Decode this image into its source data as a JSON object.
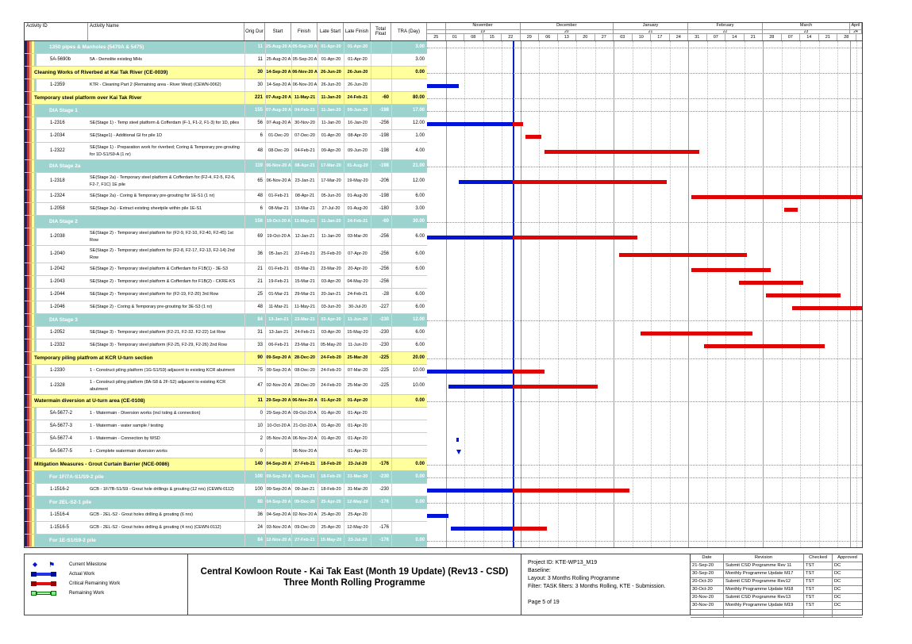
{
  "table": {
    "columns": [
      "Activity ID",
      "Activity Name",
      "Orig Dur",
      "Start",
      "Finish",
      "Late Start",
      "Late Finish",
      "Total Float",
      "TRA (Day)"
    ]
  },
  "chart_data": {
    "type": "gantt",
    "title": "Central Kowloon Route - Kai Tak East (Month 19 Update) (Rev13 - CSD) Three Month Rolling Programme",
    "bar_day_offsets_from": "25-Oct-20",
    "timeline": {
      "window_start_week": "25",
      "data_date_day_offset": 32,
      "months": [
        {
          "label": "",
          "period": "",
          "weeks": [
            "25"
          ]
        },
        {
          "label": "November",
          "period": "19",
          "weeks": [
            "01",
            "08",
            "15",
            "22"
          ]
        },
        {
          "label": "December",
          "period": "20",
          "weeks": [
            "29",
            "06",
            "13",
            "20",
            "27"
          ]
        },
        {
          "label": "January",
          "period": "21",
          "weeks": [
            "03",
            "10",
            "17",
            "24"
          ]
        },
        {
          "label": "February",
          "period": "22",
          "weeks": [
            "31",
            "07",
            "14",
            "21"
          ]
        },
        {
          "label": "March",
          "period": "23",
          "weeks": [
            "28",
            "07",
            "14",
            "21",
            "28"
          ]
        },
        {
          "label": "April",
          "period": "24",
          "weeks": []
        }
      ]
    },
    "colors": {
      "teal_band": "#9cd3cf",
      "yellow_band": "#ffff9c",
      "actual_bar": "#0014d8",
      "critical_remaining_bar": "#e00505",
      "remaining_bar": "#b6f2b6",
      "data_date_line": "#0020c8"
    },
    "rows": [
      {
        "type": "group2",
        "name": "1350 pipes & Manholes (5470A & 5475)",
        "dur": "11",
        "start": "25-Aug-20 A",
        "finish": "05-Sep-20 A",
        "late_start": "01-Apr-20",
        "late_finish": "01-Apr-20",
        "total_float": "",
        "tra": "3.00"
      },
      {
        "type": "activity",
        "id": "5A-5690b",
        "name": "5A - Demolite existing MHs",
        "dur": "11",
        "start": "25-Aug-20 A",
        "finish": "05-Sep-20 A",
        "late_start": "01-Apr-20",
        "late_finish": "01-Apr-20",
        "total_float": "",
        "tra": "3.00"
      },
      {
        "type": "group1",
        "name": "Cleaning Works of Riverbed at Kai Tak River (CE-0039)",
        "dur": "30",
        "start": "14-Sep-20 A",
        "finish": "06-Nov-20 A",
        "late_start": "26-Jun-20",
        "late_finish": "26-Jun-20",
        "total_float": "",
        "tra": "0.00"
      },
      {
        "type": "activity",
        "id": "1-2359",
        "name": "KTR - Cleaning Part 2 (Remaining area - River West) (CEWN-0062)",
        "dur": "30",
        "start": "14-Sep-20 A",
        "finish": "06-Nov-20 A",
        "late_start": "26-Jun-20",
        "late_finish": "26-Jun-20",
        "total_float": "",
        "tra": "",
        "bar": {
          "actual": [
            0,
            12
          ]
        }
      },
      {
        "type": "group1",
        "name": "Temporary steel platform over Kai Tak River",
        "dur": "221",
        "start": "07-Aug-20 A",
        "finish": "11-May-21",
        "late_start": "11-Jan-20",
        "late_finish": "24-Feb-21",
        "total_float": "-60",
        "tra": "80.00"
      },
      {
        "type": "group2",
        "name": "DIA Stage 1",
        "dur": "155",
        "start": "07-Aug-20 A",
        "finish": "04-Feb-21",
        "late_start": "11-Jan-20",
        "late_finish": "09-Jun-20",
        "total_float": "-198",
        "tra": "17.00"
      },
      {
        "type": "activity",
        "id": "1-2316",
        "name": "SE(Stage 1) - Temp steel platform & Cofferdam (F-1, F1-2, F1-3) for 1D, piles",
        "dur": "56",
        "start": "07-Aug-20 A",
        "finish": "30-Nov-20",
        "late_start": "11-Jan-20",
        "late_finish": "16-Jan-20",
        "total_float": "-256",
        "tra": "12.00",
        "bar": {
          "actual": [
            0,
            32
          ],
          "critical": [
            32,
            36
          ]
        }
      },
      {
        "type": "activity",
        "id": "1-2034",
        "name": "SE(Stage1) - Additional GI for pile 1D",
        "dur": "6",
        "start": "01-Dec-20",
        "finish": "07-Dec-20",
        "late_start": "01-Apr-20",
        "late_finish": "08-Apr-20",
        "total_float": "-198",
        "tra": "1.00",
        "bar": {
          "critical": [
            37,
            43
          ]
        }
      },
      {
        "type": "activity",
        "id": "1-2322",
        "lines": 2,
        "name": "SE(Stage 1) - Preparation work for riverbed; Coring & Temporary pre-grouting for 1D-S1/S9-A (1 nr)",
        "dur": "48",
        "start": "08-Dec-20",
        "finish": "04-Feb-21",
        "late_start": "09-Apr-20",
        "late_finish": "09-Jun-20",
        "total_float": "-198",
        "tra": "4.00",
        "bar": {
          "critical": [
            44,
            102
          ]
        }
      },
      {
        "type": "group2",
        "name": "DIA Stage 2a",
        "dur": "119",
        "start": "06-Nov-20 A",
        "finish": "08-Apr-21",
        "late_start": "17-Mar-20",
        "late_finish": "01-Aug-20",
        "total_float": "-198",
        "tra": "21.00"
      },
      {
        "type": "activity",
        "id": "1-2318",
        "lines": 2,
        "name": "SE(Stage 2a) - Temporary steel platform & Cofferdam for (F2-4, F2-5, F2-6, F2-7, F1C) 1E pile",
        "dur": "65",
        "start": "06-Nov-20 A",
        "finish": "23-Jan-21",
        "late_start": "17-Mar-20",
        "late_finish": "19-May-20",
        "total_float": "-206",
        "tra": "12.00",
        "bar": {
          "actual": [
            12,
            32
          ],
          "critical": [
            32,
            90
          ]
        }
      },
      {
        "type": "activity",
        "id": "1-2324",
        "name": "SE(Stage 2a) - Coring & Temporary pre-grouting for 1E-S1 (1 nr)",
        "dur": "48",
        "start": "01-Feb-21",
        "finish": "08-Apr-21",
        "late_start": "05-Jun-20",
        "late_finish": "01-Aug-20",
        "total_float": "-198",
        "tra": "6.00",
        "bar": {
          "critical": [
            99,
            163
          ]
        }
      },
      {
        "type": "activity",
        "id": "1-2058",
        "name": "SE(Stage 2a) - Extract existing sheetpile within pile 1E-S1",
        "dur": "6",
        "start": "08-Mar-21",
        "finish": "13-Mar-21",
        "late_start": "27-Jul-20",
        "late_finish": "01-Aug-20",
        "total_float": "-180",
        "tra": "3.00",
        "bar": {
          "critical": [
            134,
            139
          ]
        }
      },
      {
        "type": "group2",
        "name": "DIA Stage 2",
        "dur": "156",
        "start": "19-Oct-20 A",
        "finish": "11-May-21",
        "late_start": "11-Jan-20",
        "late_finish": "24-Feb-21",
        "total_float": "-60",
        "tra": "30.00"
      },
      {
        "type": "activity",
        "id": "1-2038",
        "lines": 2,
        "name": "SE(Stage 2) - Temporary steel platform for (F2-9, F2-10, F2-40, F2-45) 1st Row",
        "dur": "69",
        "start": "19-Oct-20 A",
        "finish": "12-Jan-21",
        "late_start": "11-Jan-20",
        "late_finish": "03-Mar-20",
        "total_float": "-256",
        "tra": "6.00",
        "bar": {
          "actual": [
            0,
            32
          ],
          "critical": [
            32,
            79
          ]
        }
      },
      {
        "type": "activity",
        "id": "1-2040",
        "lines": 2,
        "name": "SE(Stage 2) - Temporary steel platform for (F2-8, F2-17, F2-13, F2-14) 2nd Row",
        "dur": "36",
        "start": "05-Jan-21",
        "finish": "22-Feb-21",
        "late_start": "25-Feb-20",
        "late_finish": "07-Apr-20",
        "total_float": "-256",
        "tra": "6.00",
        "bar": {
          "critical": [
            72,
            120
          ]
        }
      },
      {
        "type": "activity",
        "id": "1-2042",
        "name": "SE(Stage 2) - Temporary steel platform & Cofferdam for F1B(1) - 3E-S3",
        "dur": "21",
        "start": "01-Feb-21",
        "finish": "03-Mar-21",
        "late_start": "23-Mar-20",
        "late_finish": "20-Apr-20",
        "total_float": "-256",
        "tra": "6.00",
        "bar": {
          "critical": [
            99,
            129
          ]
        }
      },
      {
        "type": "activity",
        "id": "1-2043",
        "name": "SE(Stage 2) - Temporary steel platform & Cofferdam for F1B(2) - CKRE-KS",
        "dur": "21",
        "start": "19-Feb-21",
        "finish": "15-Mar-21",
        "late_start": "03-Apr-20",
        "late_finish": "04-May-20",
        "total_float": "-256",
        "tra": "",
        "bar": {
          "critical": [
            117,
            141
          ]
        }
      },
      {
        "type": "activity",
        "id": "1-2044",
        "name": "SE(Stage 2) - Temporary steel platform for (F2-19, F2-20) 3rd Row",
        "dur": "25",
        "start": "01-Mar-21",
        "finish": "29-Mar-21",
        "late_start": "20-Jan-21",
        "late_finish": "24-Feb-21",
        "total_float": "-28",
        "tra": "6.00",
        "bar": {
          "critical": [
            127,
            155
          ]
        }
      },
      {
        "type": "activity",
        "id": "1-2046",
        "name": "SE(Stage 2) - Coring & Temporary pre-grouting for 3E-S3 (1 nr)",
        "dur": "48",
        "start": "11-Mar-21",
        "finish": "11-May-21",
        "late_start": "03-Jun-20",
        "late_finish": "30-Jul-20",
        "total_float": "-227",
        "tra": "6.00",
        "bar": {
          "critical": [
            137,
            163
          ]
        }
      },
      {
        "type": "group2",
        "name": "DIA Stage 3",
        "dur": "84",
        "start": "13-Jan-21",
        "finish": "23-Mar-21",
        "late_start": "03-Apr-20",
        "late_finish": "11-Jun-20",
        "total_float": "-230",
        "tra": "12.00"
      },
      {
        "type": "activity",
        "id": "1-2052",
        "name": "SE(Stage 3) - Temporary steel platform (F2-21, F2-32. F2-22) 1st Row",
        "dur": "31",
        "start": "13-Jan-21",
        "finish": "24-Feb-21",
        "late_start": "03-Apr-20",
        "late_finish": "15-May-20",
        "total_float": "-230",
        "tra": "6.00",
        "bar": {
          "critical": [
            80,
            122
          ]
        }
      },
      {
        "type": "activity",
        "id": "1-2332",
        "name": "SE(Stage 3) - Temporary steel platform (F2-25, F2-29, F2-26) 2nd Row",
        "dur": "33",
        "start": "06-Feb-21",
        "finish": "23-Mar-21",
        "late_start": "05-May-20",
        "late_finish": "11-Jun-20",
        "total_float": "-230",
        "tra": "6.00",
        "bar": {
          "critical": [
            104,
            149
          ]
        }
      },
      {
        "type": "group1",
        "name": "Temporary piling platfrom at KCR U-turn section",
        "dur": "90",
        "start": "09-Sep-20 A",
        "finish": "28-Dec-20",
        "late_start": "24-Feb-20",
        "late_finish": "25-Mar-20",
        "total_float": "-225",
        "tra": "20.00"
      },
      {
        "type": "activity",
        "id": "1-2330",
        "name": "1 - Construct piling platform (1G-S1/S9) adjacent to existing KCR abutment",
        "dur": "75",
        "start": "09-Sep-20 A",
        "finish": "08-Dec-20",
        "late_start": "24-Feb-20",
        "late_finish": "07-Mar-20",
        "total_float": "-225",
        "tra": "10.00",
        "bar": {
          "actual": [
            0,
            32
          ],
          "critical": [
            32,
            44
          ]
        }
      },
      {
        "type": "activity",
        "id": "1-2328",
        "lines": 2,
        "name": "1 - Construct piling platform (8A-S8 & 2F-S2) adjacent to existing KCR abutment",
        "dur": "47",
        "start": "02-Nov-20 A",
        "finish": "28-Dec-20",
        "late_start": "24-Feb-20",
        "late_finish": "25-Mar-20",
        "total_float": "-225",
        "tra": "10.00",
        "bar": {
          "actual": [
            8,
            32
          ],
          "critical": [
            32,
            64
          ]
        }
      },
      {
        "type": "group1",
        "name": "Watermain diversion at U-turn area (CE-0108)",
        "dur": "11",
        "start": "29-Sep-20 A",
        "finish": "06-Nov-20 A",
        "late_start": "01-Apr-20",
        "late_finish": "01-Apr-20",
        "total_float": "",
        "tra": "0.00"
      },
      {
        "type": "activity",
        "id": "5A-5677-2",
        "name": "1 - Watermain - Diversion works (incl tsting & connection)",
        "dur": "0",
        "start": "29-Sep-20 A",
        "finish": "09-Oct-20 A",
        "late_start": "01-Apr-20",
        "late_finish": "01-Apr-20",
        "total_float": "",
        "tra": ""
      },
      {
        "type": "activity",
        "id": "5A-5677-3",
        "name": "1 - Watermain - water sample / testing",
        "dur": "10",
        "start": "10-Oct-20 A",
        "finish": "21-Oct-20 A",
        "late_start": "01-Apr-20",
        "late_finish": "01-Apr-20",
        "total_float": "",
        "tra": ""
      },
      {
        "type": "activity",
        "id": "5A-5677-4",
        "name": "1 - Watermain - Connection by WSD",
        "dur": "2",
        "start": "05-Nov-20 A",
        "finish": "06-Nov-20 A",
        "late_start": "01-Apr-20",
        "late_finish": "01-Apr-20",
        "total_float": "",
        "tra": "",
        "bar": {
          "actual": [
            11,
            12
          ]
        }
      },
      {
        "type": "activity",
        "id": "5A-5677-5",
        "name": "1 - Complete watermain diversion works",
        "dur": "0",
        "start": "",
        "finish": "06-Nov-20 A",
        "late_start": "",
        "late_finish": "01-Apr-20",
        "total_float": "",
        "tra": "",
        "bar": {
          "milestone": 12
        }
      },
      {
        "type": "group1",
        "name": "Mitigation Measures - Grout Curtain Barrier (NCE-0086)",
        "dur": "140",
        "start": "04-Sep-20 A",
        "finish": "27-Feb-21",
        "late_start": "18-Feb-20",
        "late_finish": "23-Jul-20",
        "total_float": "-176",
        "tra": "0.00"
      },
      {
        "type": "group2",
        "name": "For 1F/7A-S1/S9-2 pile",
        "dur": "100",
        "start": "09-Sep-20 A",
        "finish": "09-Jan-21",
        "late_start": "18-Feb-20",
        "late_finish": "31-Mar-20",
        "total_float": "-230",
        "tra": "0.00"
      },
      {
        "type": "activity",
        "id": "1-1516-2",
        "name": "GCB - 1F/7B-S1/S9 - Grout hole drillings & grouting (12 nrs) (CEWN-0112)",
        "dur": "100",
        "start": "09-Sep-20 A",
        "finish": "09-Jan-21",
        "late_start": "18-Feb-20",
        "late_finish": "31-Mar-20",
        "total_float": "-230",
        "tra": "",
        "bar": {
          "actual": [
            0,
            32
          ],
          "critical": [
            32,
            76
          ]
        }
      },
      {
        "type": "group2",
        "name": "For 2EL-S2-1 pile",
        "dur": "80",
        "start": "04-Sep-20 A",
        "finish": "09-Dec-20",
        "late_start": "25-Apr-20",
        "late_finish": "12-May-20",
        "total_float": "-176",
        "tra": "0.00"
      },
      {
        "type": "activity",
        "id": "1-1516-4",
        "name": "GCB - 2EL-S2 - Grout holes drilling & grouting (6 nrs)",
        "dur": "36",
        "start": "04-Sep-20 A",
        "finish": "02-Nov-20 A",
        "late_start": "25-Apr-20",
        "late_finish": "25-Apr-20",
        "total_float": "",
        "tra": "",
        "bar": {
          "actual": [
            0,
            8
          ]
        }
      },
      {
        "type": "activity",
        "id": "1-1516-5",
        "name": "GCB - 2EL-S2 - Grout holes drilling & grouting (4 nrs) (CEWN-0112)",
        "dur": "24",
        "start": "03-Nov-20 A",
        "finish": "09-Dec-20",
        "late_start": "25-Apr-20",
        "late_finish": "12-May-20",
        "total_float": "-176",
        "tra": "",
        "bar": {
          "actual": [
            9,
            32
          ],
          "critical": [
            32,
            45
          ]
        }
      },
      {
        "type": "group2",
        "name": "For 1E-S1/S9-2 pile",
        "dur": "84",
        "start": "12-Nov-20 A",
        "finish": "27-Feb-21",
        "late_start": "15-May-20",
        "late_finish": "23-Jul-20",
        "total_float": "-176",
        "tra": "0.00"
      }
    ]
  },
  "legend": {
    "items": [
      {
        "icon": "milestone",
        "label": "Current Milestone"
      },
      {
        "icon": "actual-bar",
        "label": "Actual Work"
      },
      {
        "icon": "critical-bar",
        "label": "Critical Remaining Work"
      },
      {
        "icon": "remaining-bar",
        "label": "Remaining Work"
      }
    ]
  },
  "titleblock": {
    "line1": "Central Kowloon Route - Kai Tak East (Month 19 Update) (Rev13 - CSD)",
    "line2": "Three Month Rolling Programme"
  },
  "project_info": {
    "project_id": "Project ID: KTE-WP13_M19",
    "baseline": "Baseline:",
    "layout": "Layout: 3 Months Rolling Programme",
    "filter": "Filter: TASK filters: 3 Months Rolling, KTE - Submission.",
    "page": "Page 5 of 19"
  },
  "revisions": {
    "headers": [
      "Date",
      "Revision",
      "Checked",
      "Approved"
    ],
    "rows": [
      [
        "21-Sep-20",
        "Submit CSD Programme Rev 11",
        "TST",
        "DC"
      ],
      [
        "30-Sep-20",
        "Monthly Programme Update M17",
        "TST",
        "DC"
      ],
      [
        "20-Oct-20",
        "Submit CSD Programme Rev12",
        "TST",
        "DC"
      ],
      [
        "30-Oct-20",
        "Monthly Programme Update M18",
        "TST",
        "DC"
      ],
      [
        "20-Nov-20",
        "Submit CSD Programme Rev13",
        "TST",
        "DC"
      ],
      [
        "30-Nov-20",
        "Monthly Programme Update M19",
        "TST",
        "DC"
      ],
      [
        "",
        "",
        "",
        ""
      ]
    ]
  }
}
